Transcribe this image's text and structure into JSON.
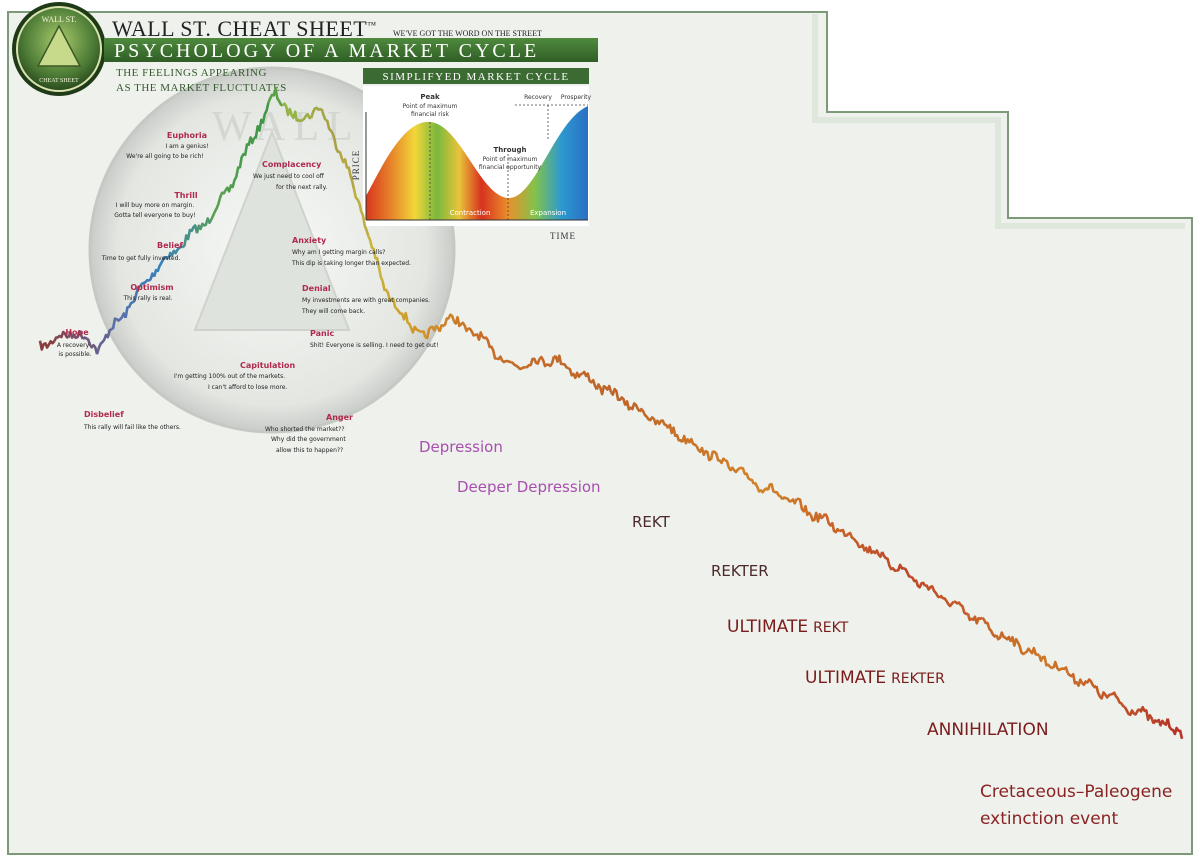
{
  "header": {
    "brand": "WALL ST. CHEAT SHEET",
    "trademark": "™",
    "tagline": "WE'VE GOT THE WORD ON THE STREET",
    "title": "PSYCHOLOGY OF A MARKET CYCLE",
    "subtitle_line1": "THE FEELINGS APPEARING",
    "subtitle_line2": "AS THE MARKET FLUCTUATES",
    "seal_top": "WALL ST.",
    "seal_bottom": "CHEAT SHEET"
  },
  "inset": {
    "title": "SIMPLIFYED MARKET CYCLE",
    "peak_label": "Peak",
    "peak_note_1": "Point of maximum",
    "peak_note_2": "financial risk",
    "trough_label": "Through",
    "trough_note_1": "Point of maximum",
    "trough_note_2": "financial opportunity",
    "recovery": "Recovery",
    "prosperity": "Prosperity",
    "contraction": "Contraction",
    "expansion": "Expansion",
    "y_axis": "PRICE",
    "x_axis": "TIME"
  },
  "emotions": [
    {
      "title": "Euphoria",
      "lines": [
        "I am a genius!",
        "We're all going to be rich!"
      ]
    },
    {
      "title": "Thrill",
      "lines": [
        "I will buy more on margin.",
        "Gotta tell everyone to buy!"
      ]
    },
    {
      "title": "Belief",
      "lines": [
        "Time to get fully invested."
      ]
    },
    {
      "title": "Optimism",
      "lines": [
        "This rally is real."
      ]
    },
    {
      "title": "Hope",
      "lines": [
        "A recovery",
        "is possible."
      ]
    },
    {
      "title": "Disbelief",
      "lines": [
        "This rally will fail like the others."
      ]
    },
    {
      "title": "Complacency",
      "lines": [
        "We just need to cool off",
        "for the next rally."
      ]
    },
    {
      "title": "Anxiety",
      "lines": [
        "Why am I getting margin calls?",
        "This dip is taking longer than expected."
      ]
    },
    {
      "title": "Denial",
      "lines": [
        "My investments are with great companies.",
        "They will come back."
      ]
    },
    {
      "title": "Panic",
      "lines": [
        "Shit! Everyone is selling. I need to get out!"
      ]
    },
    {
      "title": "Capitulation",
      "lines": [
        "I'm getting 100% out of the markets.",
        "I can't afford to lose more."
      ]
    },
    {
      "title": "Anger",
      "lines": [
        "Who shorted the market??",
        "Why did the government",
        "allow this to happen??"
      ]
    }
  ],
  "stages": {
    "depression": "Depression",
    "deeper_depression": "Deeper Depression",
    "rekt": "REKT",
    "rekter": "REKTER",
    "ultimate_rekt_1": "ULTIMATE",
    "ultimate_rekt_2": "REKT",
    "ultimate_rekter_1": "ULTIMATE",
    "ultimate_rekter_2": "REKTER",
    "annihilation": "ANNIHILATION",
    "final_1": "Cretaceous–Paleogene",
    "final_2": "extinction event"
  },
  "chart_data": {
    "type": "line",
    "title": "PSYCHOLOGY OF A MARKET CYCLE",
    "xlabel": "",
    "ylabel": "",
    "series": [
      {
        "points": [
          {
            "x": 0,
            "y": 22
          },
          {
            "x": 5,
            "y": 26
          },
          {
            "x": 8,
            "y": 21
          },
          {
            "x": 12,
            "y": 32
          },
          {
            "x": 16,
            "y": 44
          },
          {
            "x": 20,
            "y": 52
          },
          {
            "x": 24,
            "y": 60
          },
          {
            "x": 27,
            "y": 70
          },
          {
            "x": 30,
            "y": 84
          },
          {
            "x": 33,
            "y": 96
          },
          {
            "x": 36,
            "y": 88
          },
          {
            "x": 39,
            "y": 92
          },
          {
            "x": 42,
            "y": 80
          },
          {
            "x": 45,
            "y": 62
          },
          {
            "x": 48,
            "y": 40
          },
          {
            "x": 51,
            "y": 30
          },
          {
            "x": 54,
            "y": 24
          },
          {
            "x": 57,
            "y": 30
          },
          {
            "x": 60,
            "y": 27
          },
          {
            "x": 66,
            "y": 16
          },
          {
            "x": 72,
            "y": 18
          },
          {
            "x": 80,
            "y": 8
          },
          {
            "x": 90,
            "y": -5
          },
          {
            "x": 100,
            "y": -18
          },
          {
            "x": 112,
            "y": -32
          },
          {
            "x": 122,
            "y": -46
          },
          {
            "x": 132,
            "y": -60
          },
          {
            "x": 142,
            "y": -72
          },
          {
            "x": 152,
            "y": -84
          },
          {
            "x": 160,
            "y": -92
          }
        ]
      }
    ],
    "annotations": [
      "Euphoria",
      "Thrill",
      "Belief",
      "Optimism",
      "Hope",
      "Disbelief",
      "Complacency",
      "Anxiety",
      "Denial",
      "Panic",
      "Capitulation",
      "Anger",
      "Depression",
      "Deeper Depression",
      "REKT",
      "REKTER",
      "ULTIMATE REKT",
      "ULTIMATE REKTER",
      "ANNIHILATION",
      "Cretaceous–Paleogene extinction event"
    ],
    "grid": false
  },
  "colors": {
    "panel_bg": "#eef1ec",
    "panel_border": "#7d9a78",
    "brand_green": "#3b6a32",
    "label_purple": "#a84fb0",
    "label_red": "#b02a4e",
    "line_start": "#8a3d3d",
    "line_green": "#4a9a3a",
    "line_orange": "#c77a28",
    "line_red": "#c0342b"
  }
}
